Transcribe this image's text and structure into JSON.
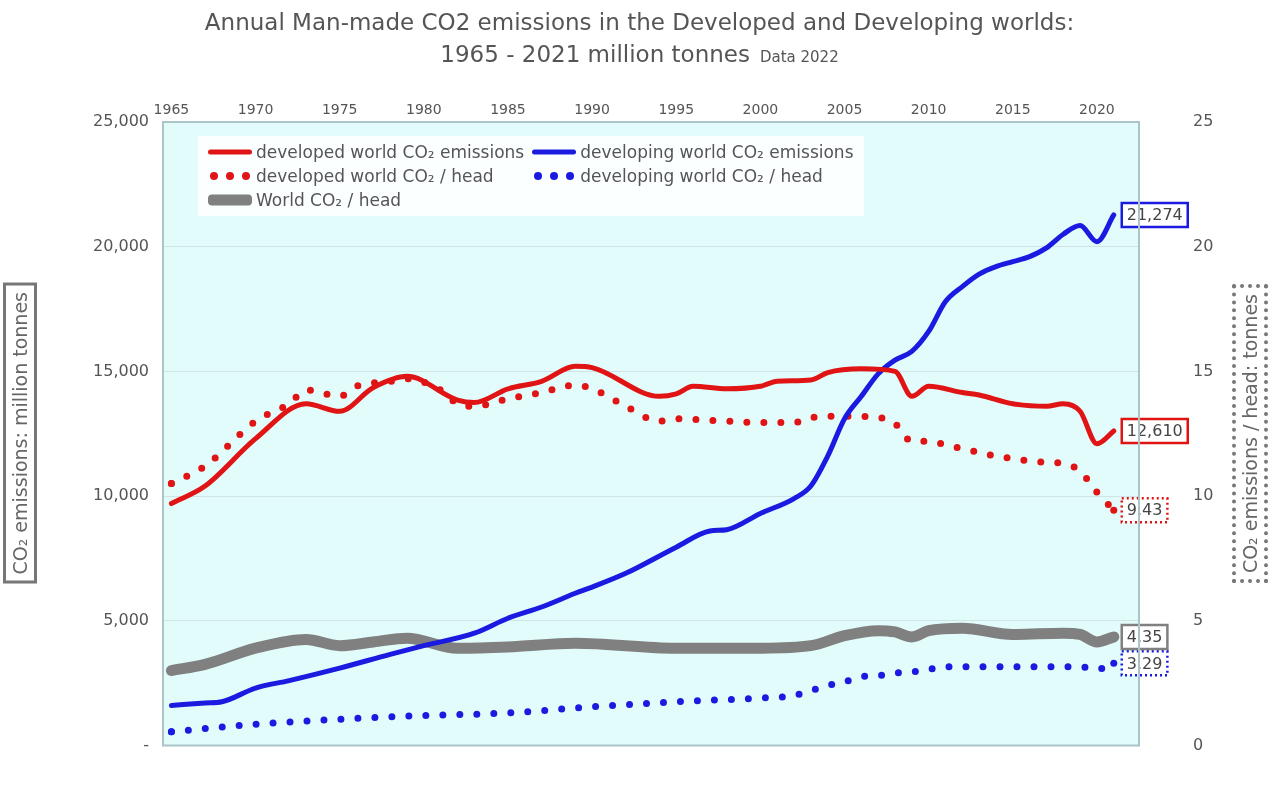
{
  "chart_data": {
    "type": "line",
    "title": "Annual Man-made CO2 emissions in the Developed and Developing worlds:",
    "subtitle": "1965 - 2021  million tonnes",
    "annotations": [
      "Data 2022"
    ],
    "ylabel": "CO₂ emissions: million tonnes",
    "y2label": "CO₂ emissions / head: tonnes",
    "xlim": [
      1964.5,
      2022.5
    ],
    "xticks": [
      1965,
      1970,
      1975,
      1980,
      1985,
      1990,
      1995,
      2000,
      2005,
      2010,
      2015,
      2020
    ],
    "ylim": [
      0,
      25000
    ],
    "yticks": [
      {
        "value": 0,
        "label": "-"
      },
      {
        "value": 5000,
        "label": "5,000"
      },
      {
        "value": 10000,
        "label": "10,000"
      },
      {
        "value": 15000,
        "label": "15,000"
      },
      {
        "value": 20000,
        "label": "20,000"
      },
      {
        "value": 25000,
        "label": "25,000"
      }
    ],
    "y2lim": [
      0,
      25
    ],
    "y2ticks": [
      0,
      5,
      10,
      15,
      20,
      25
    ],
    "grid": "y",
    "legend": "top left",
    "series": [
      {
        "name": "developed world CO₂ emissions",
        "color": "#e01414",
        "line_style": "solid",
        "x": [
          1965,
          1967,
          1970,
          1973,
          1975,
          1977,
          1979,
          1982,
          1983,
          1985,
          1987,
          1989,
          1990,
          1994,
          1995,
          1996,
          1998,
          2000,
          2001,
          2003,
          2004,
          2006,
          2008,
          2009,
          2010,
          2012,
          2013,
          2015,
          2017,
          2018,
          2019,
          2020,
          2021
        ],
        "values": [
          9700,
          10400,
          12300,
          13700,
          13400,
          14350,
          14800,
          13850,
          13750,
          14300,
          14600,
          15200,
          15150,
          14000,
          14100,
          14400,
          14300,
          14400,
          14600,
          14650,
          14950,
          15100,
          15000,
          14000,
          14400,
          14150,
          14050,
          13700,
          13600,
          13700,
          13400,
          12100,
          12610
        ],
        "value_labels": [
          null,
          null,
          null,
          null,
          null,
          null,
          null,
          null,
          null,
          null,
          null,
          null,
          null,
          null,
          null,
          null,
          null,
          null,
          null,
          null,
          null,
          null,
          null,
          null,
          null,
          null,
          null,
          null,
          null,
          null,
          null,
          null,
          "12,610"
        ]
      },
      {
        "name": "developing world CO₂ emissions",
        "color": "#1a1ae0",
        "line_style": "solid",
        "x": [
          1965,
          1967,
          1968,
          1970,
          1972,
          1975,
          1978,
          1980,
          1983,
          1985,
          1987,
          1989,
          1990,
          1992,
          1995,
          1997,
          1998,
          2000,
          2002,
          2003,
          2004,
          2005,
          2006,
          2007,
          2008,
          2009,
          2010,
          2011,
          2012,
          2013,
          2014,
          2015,
          2016,
          2017,
          2018,
          2019,
          2020,
          2021
        ],
        "values": [
          1600,
          1700,
          1750,
          2300,
          2600,
          3100,
          3650,
          4000,
          4500,
          5100,
          5550,
          6100,
          6350,
          6900,
          7950,
          8600,
          8650,
          9300,
          9900,
          10400,
          11600,
          13100,
          14000,
          14900,
          15450,
          15800,
          16600,
          17800,
          18400,
          18900,
          19200,
          19400,
          19600,
          19950,
          20500,
          20850,
          20200,
          21274
        ],
        "value_labels": [
          null,
          null,
          null,
          null,
          null,
          null,
          null,
          null,
          null,
          null,
          null,
          null,
          null,
          null,
          null,
          null,
          null,
          null,
          null,
          null,
          null,
          null,
          null,
          null,
          null,
          null,
          null,
          null,
          null,
          null,
          null,
          null,
          null,
          null,
          null,
          null,
          null,
          "21,274"
        ]
      },
      {
        "name": "developed world CO₂ / head",
        "color": "#e01414",
        "line_style": "dotted",
        "axis": "y2",
        "x": [
          1965,
          1967,
          1970,
          1972,
          1973,
          1975,
          1976,
          1978,
          1979,
          1981,
          1982,
          1983,
          1985,
          1987,
          1989,
          1990,
          1992,
          1994,
          1995,
          1998,
          2000,
          2002,
          2003,
          2005,
          2007,
          2008,
          2009,
          2010,
          2011,
          2012,
          2013,
          2014,
          2015,
          2016,
          2017,
          2018,
          2019,
          2020,
          2021
        ],
        "values": [
          10.5,
          11.2,
          13.0,
          13.7,
          14.25,
          14.0,
          14.4,
          14.6,
          14.7,
          14.25,
          13.7,
          13.6,
          13.9,
          14.15,
          14.45,
          14.3,
          13.6,
          13.0,
          13.1,
          13.0,
          12.95,
          12.95,
          13.15,
          13.2,
          13.15,
          12.9,
          12.2,
          12.2,
          12.05,
          11.9,
          11.75,
          11.6,
          11.5,
          11.4,
          11.35,
          11.3,
          11.0,
          10.15,
          9.43
        ],
        "value_labels": [
          null,
          null,
          null,
          null,
          null,
          null,
          null,
          null,
          null,
          null,
          null,
          null,
          null,
          null,
          null,
          null,
          null,
          null,
          null,
          null,
          null,
          null,
          null,
          null,
          null,
          null,
          null,
          null,
          null,
          null,
          null,
          null,
          null,
          null,
          null,
          null,
          null,
          null,
          "9.43"
        ]
      },
      {
        "name": "developing world CO₂ / head",
        "color": "#1a1ae0",
        "line_style": "dotted",
        "axis": "y2",
        "x": [
          1965,
          1970,
          1975,
          1980,
          1985,
          1990,
          1995,
          2000,
          2002,
          2003,
          2004,
          2005,
          2006,
          2007,
          2008,
          2009,
          2010,
          2011,
          2015,
          2019,
          2020,
          2021
        ],
        "values": [
          0.55,
          0.85,
          1.05,
          1.2,
          1.3,
          1.55,
          1.75,
          1.9,
          2.0,
          2.2,
          2.4,
          2.55,
          2.75,
          2.8,
          2.9,
          2.95,
          3.05,
          3.15,
          3.15,
          3.15,
          3.05,
          3.29
        ],
        "value_labels": [
          null,
          null,
          null,
          null,
          null,
          null,
          null,
          null,
          null,
          null,
          null,
          null,
          null,
          null,
          null,
          null,
          null,
          null,
          null,
          null,
          null,
          "3.29"
        ]
      },
      {
        "name": "World CO₂ / head",
        "color": "#808080",
        "line_style": "solid",
        "axis": "y2",
        "x": [
          1965,
          1967,
          1970,
          1973,
          1975,
          1977,
          1979,
          1982,
          1985,
          1989,
          1995,
          2000,
          2003,
          2005,
          2007,
          2008,
          2009,
          2010,
          2012,
          2015,
          2018,
          2019,
          2020,
          2021
        ],
        "values": [
          3.0,
          3.25,
          3.9,
          4.25,
          4.0,
          4.15,
          4.3,
          3.9,
          3.95,
          4.1,
          3.9,
          3.9,
          4.0,
          4.4,
          4.6,
          4.55,
          4.35,
          4.6,
          4.7,
          4.45,
          4.5,
          4.45,
          4.15,
          4.35
        ],
        "value_labels": [
          null,
          null,
          null,
          null,
          null,
          null,
          null,
          null,
          null,
          null,
          null,
          null,
          null,
          null,
          null,
          null,
          null,
          null,
          null,
          null,
          null,
          null,
          null,
          "4.35"
        ]
      }
    ]
  }
}
